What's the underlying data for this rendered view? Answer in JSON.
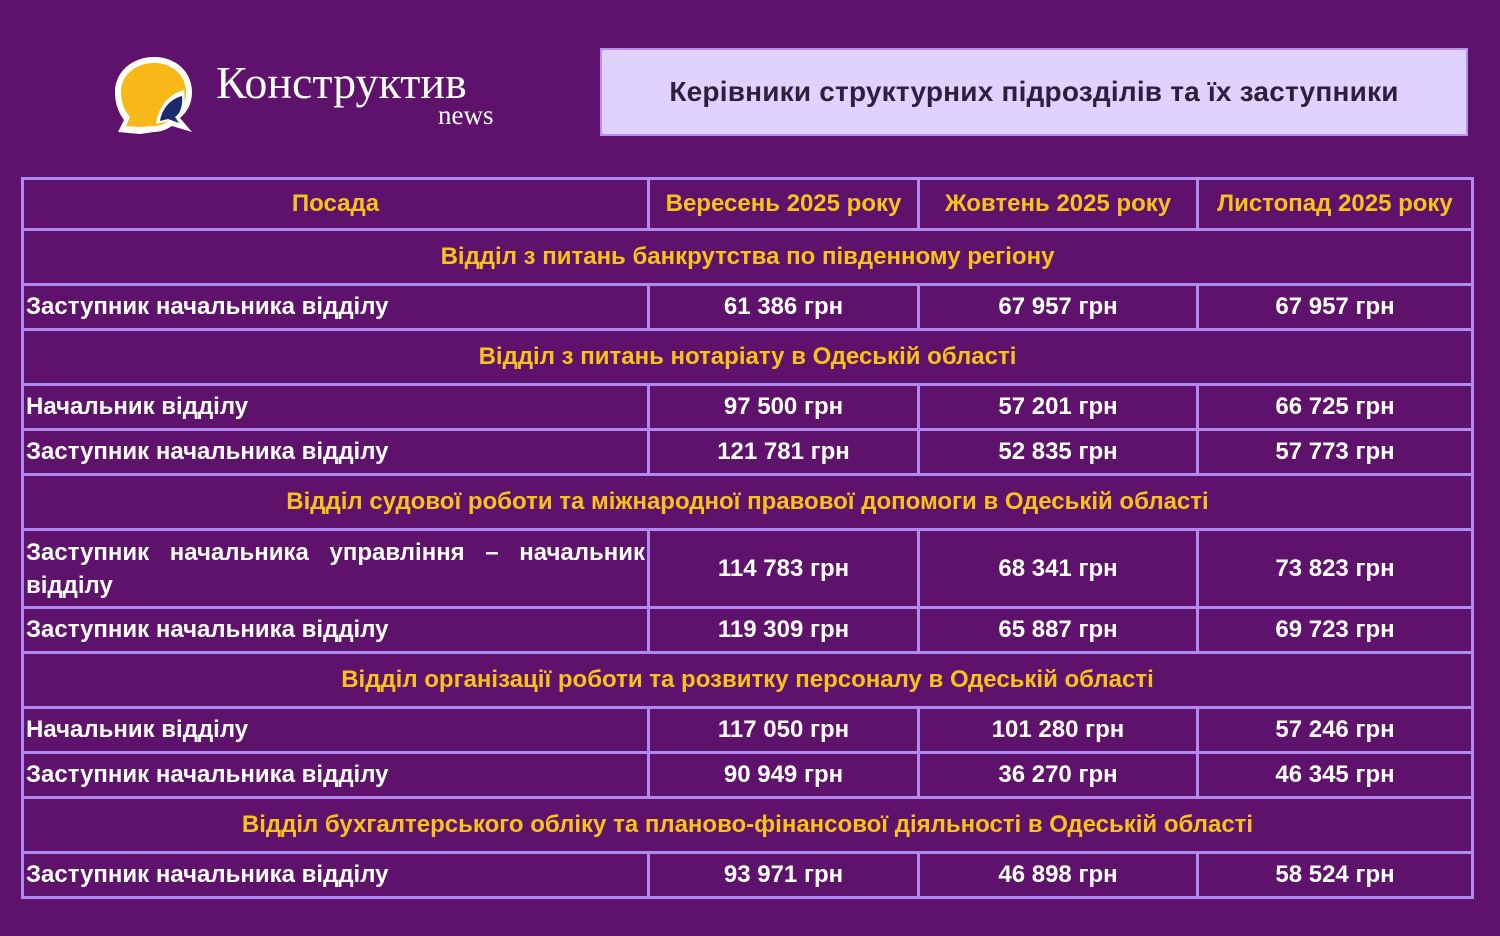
{
  "logo": {
    "name": "Конструктив",
    "sub": "news",
    "colors": {
      "bubble": "#f8b817",
      "accent": "#1e2a6e"
    }
  },
  "title": "Керівники структурних підрозділів та їх заступники",
  "colors": {
    "background": "#5f126b",
    "header_text": "#f7c21a",
    "border": "#b08af2",
    "title_bg": "#e0d2ff"
  },
  "table": {
    "headers": [
      "Посада",
      "Вересень 2025 року",
      "Жовтень 2025 року",
      "Листопад 2025 року"
    ],
    "sections": [
      {
        "name": "Відділ з питань банкрутства по південному регіону",
        "rows": [
          [
            "Заступник начальника відділу",
            "61 386 грн",
            "67 957 грн",
            "67 957 грн"
          ]
        ]
      },
      {
        "name": "Відділ з питань нотаріату в Одеській області",
        "rows": [
          [
            "Начальник відділу",
            "97 500 грн",
            "57 201 грн",
            "66 725 грн"
          ],
          [
            "Заступник начальника відділу",
            "121 781 грн",
            "52 835 грн",
            "57 773 грн"
          ]
        ]
      },
      {
        "name": "Відділ судової роботи та міжнародної правової допомоги в Одеській області",
        "rows": [
          [
            "Заступник начальника управління – начальник відділу",
            "114 783 грн",
            "68 341 грн",
            "73 823 грн"
          ],
          [
            "Заступник начальника відділу",
            "119 309 грн",
            "65 887 грн",
            "69 723 грн"
          ]
        ]
      },
      {
        "name": "Відділ організації роботи та розвитку персоналу в Одеській області",
        "rows": [
          [
            "Начальник відділу",
            "117 050 грн",
            "101 280 грн",
            "57 246 грн"
          ],
          [
            "Заступник начальника відділу",
            "90 949 грн",
            "36 270 грн",
            "46 345 грн"
          ]
        ]
      },
      {
        "name": "Відділ бухгалтерського обліку та планово-фінансової діяльності в Одеській області",
        "rows": [
          [
            "Заступник начальника відділу",
            "93 971 грн",
            "46 898 грн",
            "58 524 грн"
          ]
        ]
      }
    ]
  }
}
